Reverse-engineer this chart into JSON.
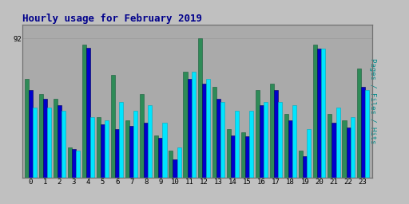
{
  "title": "Hourly usage for February 2019",
  "ylabel": "Pages / Files / Hits",
  "hours": [
    0,
    1,
    2,
    3,
    4,
    5,
    6,
    7,
    8,
    9,
    10,
    11,
    12,
    13,
    14,
    15,
    16,
    17,
    18,
    19,
    20,
    21,
    22,
    23
  ],
  "pages": [
    65,
    55,
    52,
    20,
    88,
    40,
    68,
    38,
    55,
    28,
    18,
    70,
    92,
    60,
    32,
    30,
    58,
    62,
    42,
    18,
    88,
    42,
    38,
    72
  ],
  "files": [
    58,
    52,
    48,
    19,
    86,
    35,
    32,
    34,
    36,
    26,
    12,
    65,
    62,
    52,
    28,
    27,
    48,
    58,
    38,
    14,
    85,
    36,
    33,
    60
  ],
  "hits": [
    46,
    46,
    44,
    18,
    40,
    38,
    50,
    44,
    48,
    36,
    20,
    70,
    65,
    50,
    44,
    44,
    50,
    50,
    48,
    32,
    85,
    46,
    40,
    58
  ],
  "color_pages": "#2e8b57",
  "color_files": "#0000cc",
  "color_hits": "#00e5ff",
  "edge_pages": "#1a5c3a",
  "edge_files": "#000055",
  "edge_hits": "#00aabb",
  "bg_color": "#c0c0c0",
  "plot_bg": "#aaaaaa",
  "title_color": "#00008b",
  "ylabel_color": "#008b8b",
  "ymax": 92,
  "ytick_label": "92",
  "bar_width": 0.28,
  "grid_color": "#999999",
  "spine_color": "#707070",
  "tick_color": "#000000",
  "title_fontsize": 9,
  "tick_fontsize": 6.5,
  "ylabel_fontsize": 6.5
}
